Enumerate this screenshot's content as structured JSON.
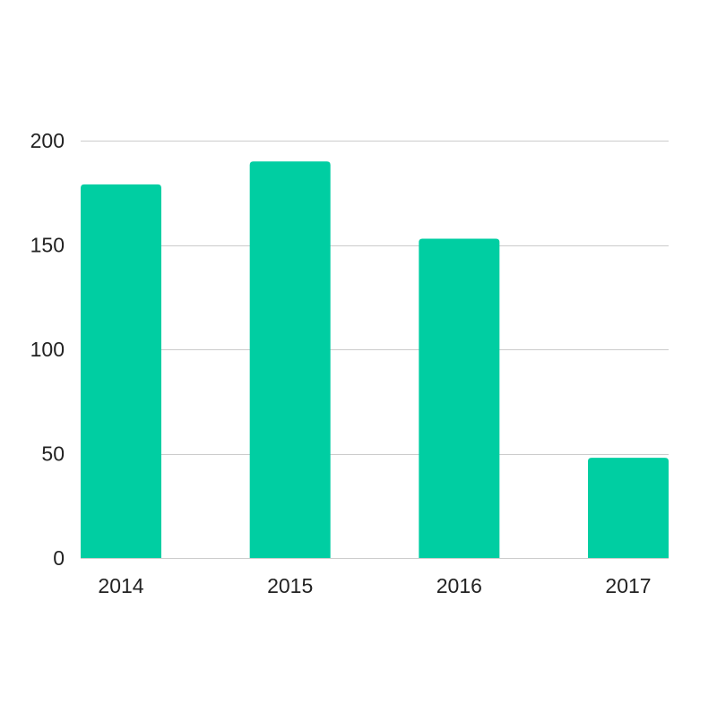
{
  "chart_data": {
    "type": "bar",
    "title": "",
    "xlabel": "",
    "ylabel": "",
    "categories": [
      "2014",
      "2015",
      "2016",
      "2017"
    ],
    "values": [
      179,
      190,
      153,
      48
    ],
    "ylim": [
      0,
      200
    ],
    "yticks": [
      0,
      50,
      100,
      150,
      200
    ],
    "grid": true,
    "legend": "none",
    "colors": {
      "bar": "#00cea2",
      "grid": "#cccccc",
      "text": "#222222"
    }
  }
}
